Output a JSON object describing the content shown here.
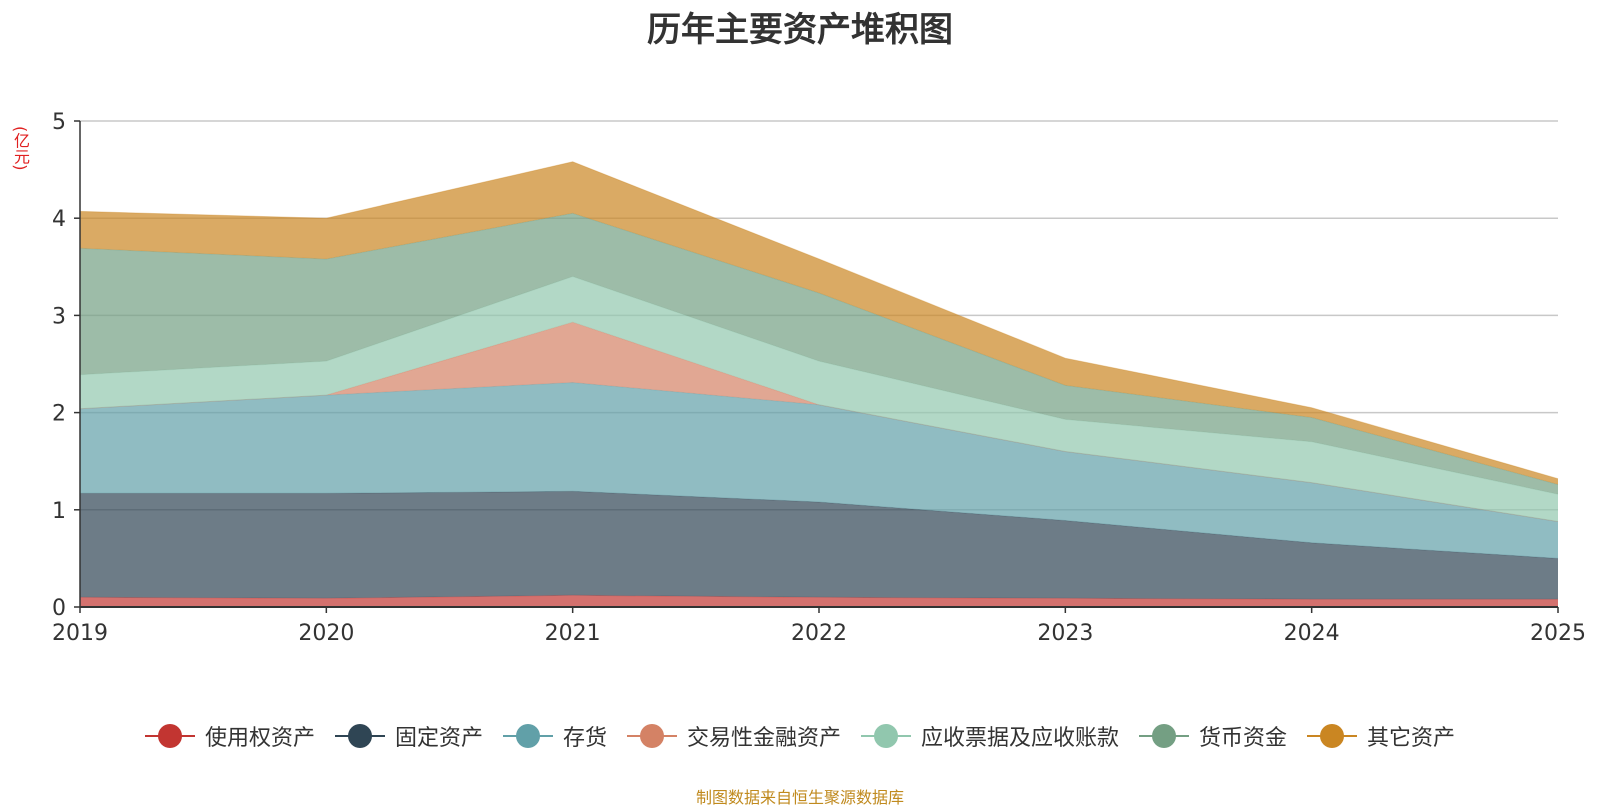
{
  "chart_data": {
    "type": "area",
    "stacked": true,
    "title": "历年主要资产堆积图",
    "unit_label": "(亿元)",
    "x": [
      "2019",
      "2020",
      "2021",
      "2022",
      "2023",
      "2024",
      "2025"
    ],
    "ylim": [
      0,
      5
    ],
    "yticks": [
      "0",
      "1",
      "2",
      "3",
      "4",
      "5"
    ],
    "grid": true,
    "legend_position": "bottom",
    "series": [
      {
        "name": "使用权资产",
        "color": "#c23531",
        "values": [
          0.1,
          0.09,
          0.12,
          0.1,
          0.09,
          0.08,
          0.08
        ]
      },
      {
        "name": "固定资产",
        "color": "#2f4554",
        "values": [
          1.07,
          1.08,
          1.07,
          0.98,
          0.8,
          0.58,
          0.42
        ]
      },
      {
        "name": "存货",
        "color": "#61a0a8",
        "values": [
          0.87,
          1.01,
          1.12,
          1.0,
          0.71,
          0.62,
          0.38
        ]
      },
      {
        "name": "交易性金融资产",
        "color": "#d48265",
        "values": [
          0.0,
          0.0,
          0.62,
          0.0,
          0.0,
          0.0,
          0.0
        ]
      },
      {
        "name": "应收票据及应收账款",
        "color": "#91c7ae",
        "values": [
          0.35,
          0.35,
          0.47,
          0.45,
          0.33,
          0.42,
          0.28
        ]
      },
      {
        "name": "货币资金",
        "color": "#749f83",
        "values": [
          1.3,
          1.05,
          0.65,
          0.7,
          0.35,
          0.25,
          0.1
        ]
      },
      {
        "name": "其它资产",
        "color": "#ca8622",
        "values": [
          0.38,
          0.42,
          0.53,
          0.35,
          0.28,
          0.1,
          0.06
        ]
      }
    ]
  },
  "footer": "制图数据来自恒生聚源数据库"
}
